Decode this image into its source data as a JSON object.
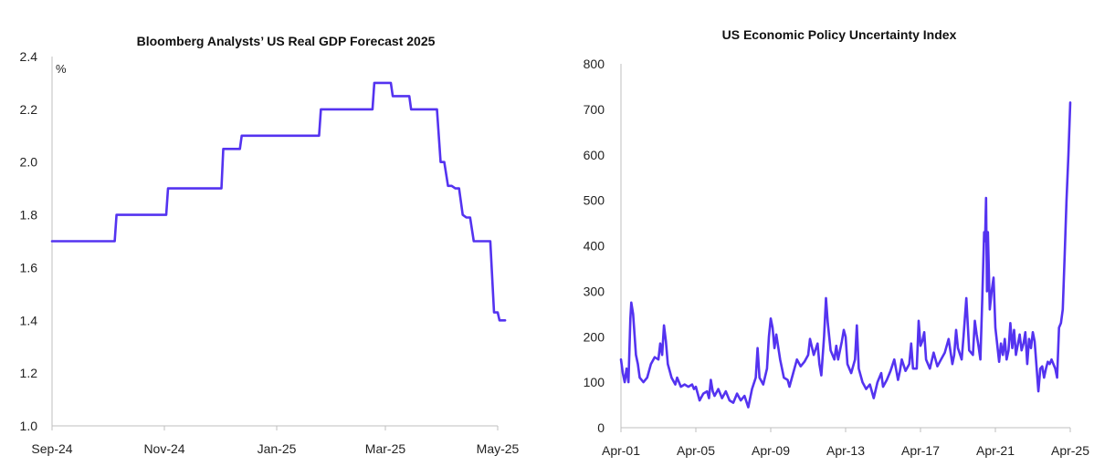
{
  "colors": {
    "series": "#5433F0",
    "axis": "#BFBFBF",
    "text": "#222222"
  },
  "chart_data": [
    {
      "type": "line",
      "title": "Bloomberg Analysts’ US Real GDP Forecast 2025",
      "unit_label": "%",
      "ylim": [
        1.0,
        2.4
      ],
      "yticks": [
        "1.0",
        "1.2",
        "1.4",
        "1.6",
        "1.8",
        "2.0",
        "2.2",
        "2.4"
      ],
      "xticks": [
        "Sep-24",
        "Nov-24",
        "Jan-25",
        "Mar-25",
        "May-25"
      ],
      "grid": false,
      "series": [
        {
          "values": [
            [
              "2024-09-01",
              1.7
            ],
            [
              "2024-10-05",
              1.7
            ],
            [
              "2024-10-06",
              1.8
            ],
            [
              "2024-11-02",
              1.8
            ],
            [
              "2024-11-03",
              1.9
            ],
            [
              "2024-12-02",
              1.9
            ],
            [
              "2024-12-03",
              2.05
            ],
            [
              "2024-12-12",
              2.05
            ],
            [
              "2024-12-13",
              2.1
            ],
            [
              "2025-01-24",
              2.1
            ],
            [
              "2025-01-25",
              2.2
            ],
            [
              "2025-02-22",
              2.2
            ],
            [
              "2025-02-23",
              2.3
            ],
            [
              "2025-03-04",
              2.3
            ],
            [
              "2025-03-05",
              2.25
            ],
            [
              "2025-03-14",
              2.25
            ],
            [
              "2025-03-15",
              2.2
            ],
            [
              "2025-03-29",
              2.2
            ],
            [
              "2025-03-31",
              2.0
            ],
            [
              "2025-04-02",
              2.0
            ],
            [
              "2025-04-04",
              1.91
            ],
            [
              "2025-04-06",
              1.91
            ],
            [
              "2025-04-08",
              1.9
            ],
            [
              "2025-04-10",
              1.9
            ],
            [
              "2025-04-12",
              1.8
            ],
            [
              "2025-04-14",
              1.79
            ],
            [
              "2025-04-16",
              1.79
            ],
            [
              "2025-04-18",
              1.7
            ],
            [
              "2025-04-27",
              1.7
            ],
            [
              "2025-04-29",
              1.43
            ],
            [
              "2025-05-01",
              1.43
            ],
            [
              "2025-05-02",
              1.4
            ],
            [
              "2025-05-05",
              1.4
            ]
          ]
        }
      ]
    },
    {
      "type": "line",
      "title": "US Economic Policy Uncertainty Index",
      "ylim": [
        0,
        800
      ],
      "yticks": [
        "0",
        "100",
        "200",
        "300",
        "400",
        "500",
        "600",
        "700",
        "800"
      ],
      "xlim": [
        2001,
        2025
      ],
      "xticks": [
        "Apr-01",
        "Apr-05",
        "Apr-09",
        "Apr-13",
        "Apr-17",
        "Apr-21",
        "Apr-25"
      ],
      "grid": false,
      "series": [
        {
          "values": [
            [
              2001.0,
              150
            ],
            [
              2001.1,
              120
            ],
            [
              2001.2,
              100
            ],
            [
              2001.3,
              130
            ],
            [
              2001.4,
              100
            ],
            [
              2001.5,
              240
            ],
            [
              2001.55,
              275
            ],
            [
              2001.65,
              250
            ],
            [
              2001.8,
              160
            ],
            [
              2001.9,
              140
            ],
            [
              2002.0,
              110
            ],
            [
              2002.2,
              100
            ],
            [
              2002.4,
              110
            ],
            [
              2002.6,
              140
            ],
            [
              2002.8,
              155
            ],
            [
              2003.0,
              150
            ],
            [
              2003.1,
              185
            ],
            [
              2003.2,
              160
            ],
            [
              2003.3,
              225
            ],
            [
              2003.4,
              190
            ],
            [
              2003.5,
              140
            ],
            [
              2003.7,
              110
            ],
            [
              2003.9,
              95
            ],
            [
              2004.0,
              110
            ],
            [
              2004.2,
              90
            ],
            [
              2004.4,
              95
            ],
            [
              2004.6,
              90
            ],
            [
              2004.8,
              95
            ],
            [
              2004.9,
              85
            ],
            [
              2005.0,
              90
            ],
            [
              2005.2,
              60
            ],
            [
              2005.4,
              75
            ],
            [
              2005.6,
              80
            ],
            [
              2005.7,
              65
            ],
            [
              2005.8,
              105
            ],
            [
              2005.9,
              80
            ],
            [
              2006.0,
              70
            ],
            [
              2006.2,
              85
            ],
            [
              2006.4,
              65
            ],
            [
              2006.6,
              80
            ],
            [
              2006.8,
              60
            ],
            [
              2007.0,
              55
            ],
            [
              2007.2,
              75
            ],
            [
              2007.4,
              60
            ],
            [
              2007.6,
              70
            ],
            [
              2007.8,
              45
            ],
            [
              2008.0,
              85
            ],
            [
              2008.2,
              110
            ],
            [
              2008.3,
              175
            ],
            [
              2008.4,
              110
            ],
            [
              2008.6,
              95
            ],
            [
              2008.8,
              130
            ],
            [
              2008.9,
              200
            ],
            [
              2009.0,
              240
            ],
            [
              2009.1,
              220
            ],
            [
              2009.2,
              175
            ],
            [
              2009.3,
              205
            ],
            [
              2009.5,
              150
            ],
            [
              2009.7,
              110
            ],
            [
              2009.9,
              105
            ],
            [
              2010.0,
              90
            ],
            [
              2010.2,
              120
            ],
            [
              2010.4,
              150
            ],
            [
              2010.6,
              135
            ],
            [
              2010.8,
              145
            ],
            [
              2011.0,
              160
            ],
            [
              2011.1,
              195
            ],
            [
              2011.3,
              160
            ],
            [
              2011.5,
              185
            ],
            [
              2011.6,
              140
            ],
            [
              2011.7,
              115
            ],
            [
              2011.85,
              200
            ],
            [
              2011.95,
              285
            ],
            [
              2012.05,
              230
            ],
            [
              2012.2,
              170
            ],
            [
              2012.4,
              150
            ],
            [
              2012.5,
              180
            ],
            [
              2012.6,
              150
            ],
            [
              2012.8,
              190
            ],
            [
              2012.9,
              215
            ],
            [
              2013.0,
              200
            ],
            [
              2013.1,
              140
            ],
            [
              2013.3,
              120
            ],
            [
              2013.5,
              150
            ],
            [
              2013.6,
              225
            ],
            [
              2013.7,
              130
            ],
            [
              2013.9,
              100
            ],
            [
              2014.1,
              85
            ],
            [
              2014.3,
              95
            ],
            [
              2014.5,
              65
            ],
            [
              2014.7,
              100
            ],
            [
              2014.9,
              120
            ],
            [
              2015.0,
              90
            ],
            [
              2015.2,
              105
            ],
            [
              2015.4,
              125
            ],
            [
              2015.6,
              150
            ],
            [
              2015.8,
              105
            ],
            [
              2015.9,
              125
            ],
            [
              2016.0,
              150
            ],
            [
              2016.2,
              125
            ],
            [
              2016.4,
              140
            ],
            [
              2016.5,
              185
            ],
            [
              2016.6,
              130
            ],
            [
              2016.8,
              130
            ],
            [
              2016.9,
              235
            ],
            [
              2017.0,
              180
            ],
            [
              2017.1,
              190
            ],
            [
              2017.2,
              210
            ],
            [
              2017.3,
              150
            ],
            [
              2017.5,
              130
            ],
            [
              2017.7,
              165
            ],
            [
              2017.9,
              135
            ],
            [
              2018.1,
              150
            ],
            [
              2018.3,
              165
            ],
            [
              2018.5,
              195
            ],
            [
              2018.7,
              140
            ],
            [
              2018.8,
              160
            ],
            [
              2018.9,
              215
            ],
            [
              2019.0,
              175
            ],
            [
              2019.2,
              150
            ],
            [
              2019.3,
              200
            ],
            [
              2019.45,
              285
            ],
            [
              2019.6,
              170
            ],
            [
              2019.8,
              160
            ],
            [
              2019.9,
              235
            ],
            [
              2020.0,
              205
            ],
            [
              2020.1,
              180
            ],
            [
              2020.2,
              150
            ],
            [
              2020.3,
              280
            ],
            [
              2020.4,
              430
            ],
            [
              2020.45,
              410
            ],
            [
              2020.5,
              505
            ],
            [
              2020.55,
              300
            ],
            [
              2020.6,
              430
            ],
            [
              2020.7,
              260
            ],
            [
              2020.8,
              300
            ],
            [
              2020.9,
              330
            ],
            [
              2021.0,
              220
            ],
            [
              2021.2,
              145
            ],
            [
              2021.3,
              185
            ],
            [
              2021.4,
              160
            ],
            [
              2021.5,
              195
            ],
            [
              2021.6,
              150
            ],
            [
              2021.7,
              170
            ],
            [
              2021.8,
              230
            ],
            [
              2021.9,
              175
            ],
            [
              2022.0,
              215
            ],
            [
              2022.1,
              160
            ],
            [
              2022.3,
              205
            ],
            [
              2022.4,
              170
            ],
            [
              2022.5,
              185
            ],
            [
              2022.6,
              210
            ],
            [
              2022.7,
              140
            ],
            [
              2022.8,
              195
            ],
            [
              2022.9,
              175
            ],
            [
              2023.0,
              210
            ],
            [
              2023.1,
              190
            ],
            [
              2023.3,
              80
            ],
            [
              2023.4,
              130
            ],
            [
              2023.5,
              135
            ],
            [
              2023.6,
              110
            ],
            [
              2023.7,
              130
            ],
            [
              2023.8,
              145
            ],
            [
              2023.9,
              140
            ],
            [
              2024.0,
              150
            ],
            [
              2024.2,
              130
            ],
            [
              2024.3,
              110
            ],
            [
              2024.4,
              220
            ],
            [
              2024.5,
              230
            ],
            [
              2024.6,
              260
            ],
            [
              2024.7,
              380
            ],
            [
              2024.8,
              500
            ],
            [
              2024.9,
              600
            ],
            [
              2025.0,
              715
            ]
          ]
        }
      ]
    }
  ]
}
